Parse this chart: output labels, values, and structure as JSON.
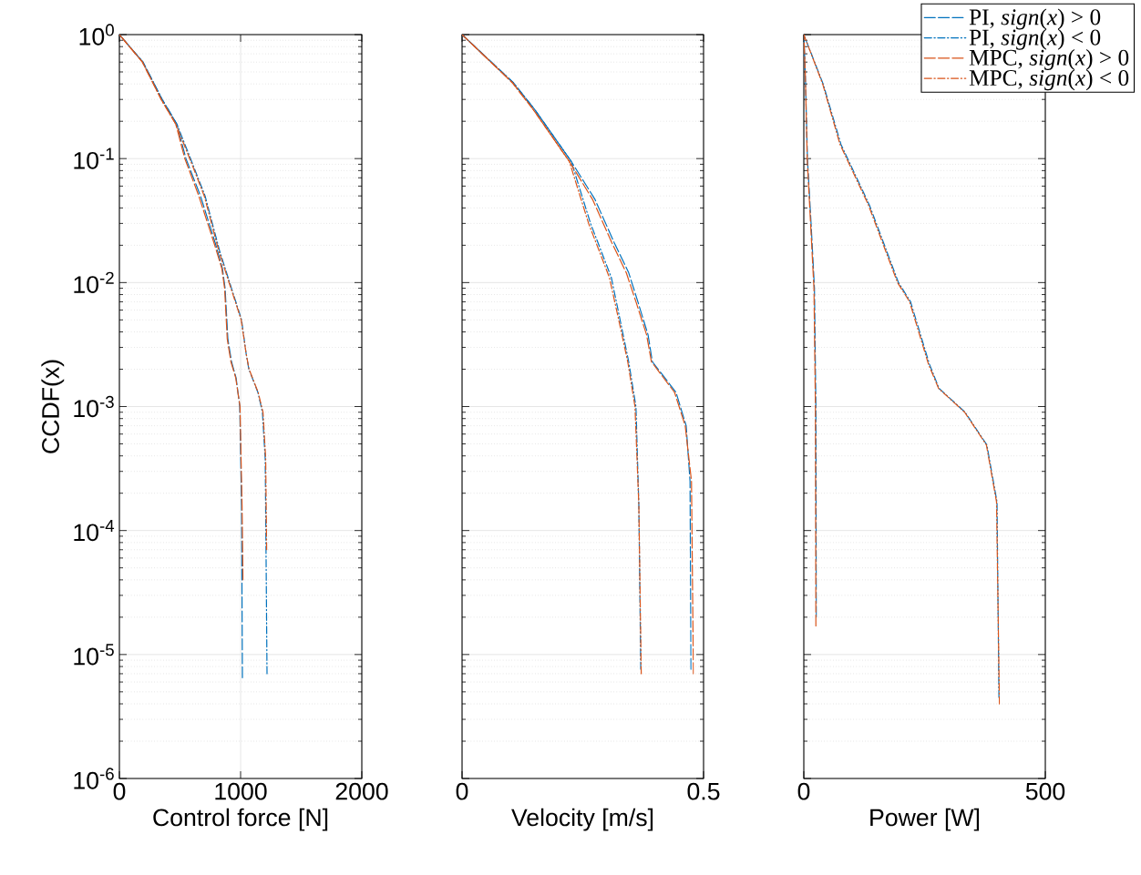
{
  "chart_data": [
    {
      "type": "line",
      "xlabel": "Control force [N]",
      "ylabel": "CCDF(x)",
      "log": "y",
      "grid": true,
      "xlim": [
        0,
        2000
      ],
      "ylim": [
        1e-06,
        1
      ],
      "xticks": [
        0,
        1000,
        2000
      ],
      "yticks": [
        {
          "value": 1e-06,
          "label": "10$^{-6}$"
        },
        {
          "value": 1e-05,
          "label": "10$^{-5}$"
        },
        {
          "value": 0.0001,
          "label": "10$^{-4}$"
        },
        {
          "value": 0.001,
          "label": "10$^{-3}$"
        },
        {
          "value": 0.01,
          "label": "10$^{-2}$"
        },
        {
          "value": 0.1,
          "label": "10$^{-1}$"
        },
        {
          "value": 1,
          "label": "10$^{0}$"
        }
      ],
      "series": [
        {
          "color": "#0072bd",
          "line_style": "dashed",
          "x": [
            0,
            195,
            353,
            474,
            549,
            669,
            790,
            850,
            872,
            895,
            925,
            963,
            993,
            1008,
            1015
          ],
          "values": [
            1,
            0.6,
            0.3,
            0.19,
            0.1,
            0.05,
            0.021,
            0.013,
            0.009,
            0.0035,
            0.0023,
            0.0017,
            0.001,
            0.00016,
            6.5e-06
          ]
        },
        {
          "color": "#0072bd",
          "line_style": "dashdot",
          "x": [
            0,
            195,
            353,
            474,
            587,
            707,
            827,
            925,
            1008,
            1045,
            1068,
            1143,
            1180,
            1203,
            1211,
            1218
          ],
          "values": [
            1,
            0.6,
            0.3,
            0.19,
            0.1,
            0.05,
            0.018,
            0.009,
            0.005,
            0.0027,
            0.002,
            0.0013,
            0.0009,
            0.00038,
            5e-05,
            7e-06
          ]
        },
        {
          "color": "#d95319",
          "line_style": "dashed",
          "x": [
            0,
            190,
            345,
            465,
            540,
            655,
            780,
            845,
            868,
            890,
            920,
            960,
            995,
            1012,
            1020
          ],
          "values": [
            1,
            0.6,
            0.3,
            0.19,
            0.1,
            0.05,
            0.021,
            0.013,
            0.009,
            0.0035,
            0.0023,
            0.0017,
            0.001,
            0.00016,
            4e-05
          ]
        },
        {
          "color": "#d95319",
          "line_style": "dashdot",
          "x": [
            0,
            190,
            345,
            465,
            580,
            700,
            820,
            920,
            1005,
            1045,
            1070,
            1145,
            1185,
            1207,
            1215
          ],
          "values": [
            1,
            0.6,
            0.3,
            0.19,
            0.1,
            0.05,
            0.018,
            0.009,
            0.005,
            0.0027,
            0.002,
            0.0013,
            0.0009,
            0.00038,
            7e-05
          ]
        }
      ]
    },
    {
      "type": "line",
      "xlabel": "Velocity [m/s]",
      "log": "y",
      "grid": true,
      "tick_labels": "x",
      "xlim": [
        0,
        0.5
      ],
      "ylim": [
        1e-06,
        1
      ],
      "xticks": [
        0,
        0.5
      ],
      "yticks": [
        {
          "value": 1e-06,
          "label": null
        },
        {
          "value": 1e-05,
          "label": null
        },
        {
          "value": 0.0001,
          "label": null
        },
        {
          "value": 0.001,
          "label": null
        },
        {
          "value": 0.01,
          "label": null
        },
        {
          "value": 0.1,
          "label": null
        },
        {
          "value": 1,
          "label": null
        }
      ],
      "series": [
        {
          "color": "#0072bd",
          "line_style": "dashed",
          "x": [
            0,
            0.106,
            0.15,
            0.226,
            0.275,
            0.315,
            0.345,
            0.364,
            0.385,
            0.394,
            0.443,
            0.464,
            0.472,
            0.474
          ],
          "values": [
            1,
            0.41,
            0.25,
            0.095,
            0.047,
            0.021,
            0.012,
            0.007,
            0.0038,
            0.0023,
            0.0013,
            0.0007,
            0.00025,
            7.6e-06
          ]
        },
        {
          "color": "#0072bd",
          "line_style": "dashdot",
          "x": [
            0,
            0.106,
            0.15,
            0.226,
            0.266,
            0.309,
            0.325,
            0.345,
            0.36,
            0.366,
            0.37
          ],
          "values": [
            1,
            0.41,
            0.25,
            0.095,
            0.03,
            0.011,
            0.0055,
            0.0023,
            0.001,
            0.00016,
            7.6e-06
          ]
        },
        {
          "color": "#d95319",
          "line_style": "dashed",
          "x": [
            0,
            0.104,
            0.147,
            0.222,
            0.27,
            0.31,
            0.34,
            0.36,
            0.382,
            0.392,
            0.44,
            0.462,
            0.475,
            0.479
          ],
          "values": [
            1,
            0.41,
            0.25,
            0.095,
            0.047,
            0.021,
            0.012,
            0.007,
            0.0038,
            0.0023,
            0.0013,
            0.0007,
            0.00025,
            7e-06
          ]
        },
        {
          "color": "#d95319",
          "line_style": "dashdot",
          "x": [
            0,
            0.104,
            0.147,
            0.222,
            0.262,
            0.305,
            0.322,
            0.343,
            0.358,
            0.366,
            0.371
          ],
          "values": [
            1,
            0.41,
            0.25,
            0.095,
            0.03,
            0.011,
            0.0055,
            0.0023,
            0.001,
            0.00016,
            7e-06
          ]
        }
      ]
    },
    {
      "type": "line",
      "xlabel": "Power [W]",
      "log": "y",
      "grid": true,
      "tick_labels": "x",
      "legend": "top right",
      "xlim": [
        0,
        500
      ],
      "ylim": [
        1e-06,
        1
      ],
      "xticks": [
        0,
        500
      ],
      "yticks": [
        {
          "value": 1e-06,
          "label": null
        },
        {
          "value": 1e-05,
          "label": null
        },
        {
          "value": 0.0001,
          "label": null
        },
        {
          "value": 0.001,
          "label": null
        },
        {
          "value": 0.01,
          "label": null
        },
        {
          "value": 0.1,
          "label": null
        },
        {
          "value": 1,
          "label": null
        }
      ],
      "series": [
        {
          "name": "PI, *sign*(*x*) > 0",
          "color": "#0072bd",
          "line_style": "dashed",
          "x": [
            0,
            3,
            7.5,
            15,
            22,
            25,
            26
          ],
          "values": [
            1,
            0.5,
            0.1,
            0.03,
            0.009,
            0.001,
            2e-05
          ]
        },
        {
          "name": "PI, *sign*(*x*) < 0",
          "color": "#0072bd",
          "line_style": "dashdot",
          "x": [
            0,
            40,
            77,
            136,
            196,
            221,
            260,
            280,
            334,
            379,
            400,
            404
          ],
          "values": [
            1,
            0.4,
            0.13,
            0.042,
            0.01,
            0.007,
            0.0022,
            0.0014,
            0.0009,
            0.00049,
            0.00017,
            4.5e-06
          ]
        },
        {
          "name": "MPC, *sign*(*x*) > 0",
          "color": "#d95319",
          "line_style": "dashed",
          "x": [
            0,
            3,
            7,
            14,
            21,
            24,
            25
          ],
          "values": [
            1,
            0.5,
            0.1,
            0.03,
            0.009,
            0.001,
            1.7e-05
          ]
        },
        {
          "name": "MPC, *sign*(*x*) < 0",
          "color": "#d95319",
          "line_style": "dashdot",
          "x": [
            0,
            39,
            75,
            134,
            194,
            219,
            258,
            279,
            333,
            378,
            399,
            405
          ],
          "values": [
            1,
            0.4,
            0.13,
            0.042,
            0.01,
            0.007,
            0.0022,
            0.0014,
            0.0009,
            0.00049,
            0.00017,
            4e-06
          ]
        }
      ]
    }
  ]
}
